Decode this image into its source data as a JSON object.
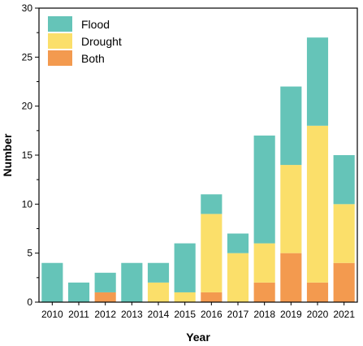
{
  "chart_data": {
    "type": "bar",
    "stacked": true,
    "categories": [
      "2010",
      "2011",
      "2012",
      "2013",
      "2014",
      "2015",
      "2016",
      "2017",
      "2018",
      "2019",
      "2020",
      "2021"
    ],
    "series": [
      {
        "name": "Both",
        "color": "#F39A4F",
        "values": [
          0,
          0,
          1,
          0,
          0,
          0,
          1,
          0,
          2,
          5,
          2,
          4
        ]
      },
      {
        "name": "Drought",
        "color": "#FBDF6A",
        "values": [
          0,
          0,
          0,
          0,
          2,
          1,
          8,
          5,
          4,
          9,
          16,
          6
        ]
      },
      {
        "name": "Flood",
        "color": "#65C4B8",
        "values": [
          4,
          2,
          2,
          4,
          2,
          5,
          2,
          2,
          11,
          8,
          9,
          5
        ]
      }
    ],
    "legend_order": [
      "Flood",
      "Drought",
      "Both"
    ],
    "legend_position": "top-left",
    "xlabel": "Year",
    "ylabel": "Number",
    "ylim": [
      0,
      30
    ],
    "yticks": [
      "0",
      "5",
      "10",
      "15",
      "20",
      "25",
      "30"
    ],
    "grid": false
  }
}
